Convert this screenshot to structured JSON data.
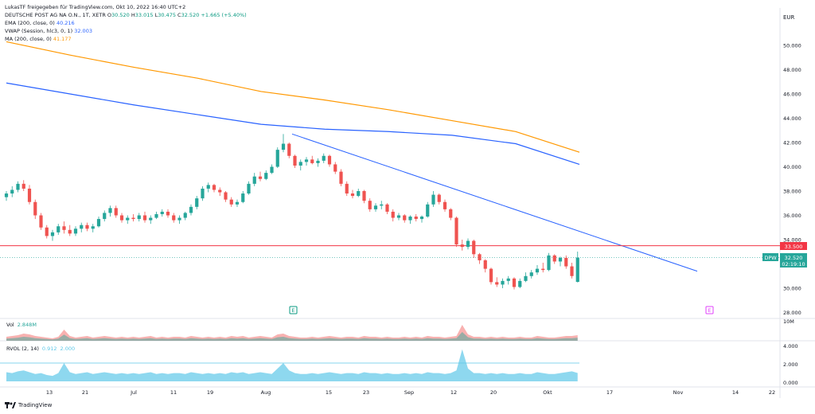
{
  "header": {
    "shared_by": "LukasTF freigegeben für TradingView.com, Okt 10, 2022 16:40 UTC+2",
    "symbol": "DEUTSCHE POST AG NA O.N., 1T, XETR",
    "o_label": "O",
    "o": "30.520",
    "h_label": "H",
    "h": "33.015",
    "l_label": "L",
    "l": "30.475",
    "c_label": "C",
    "c": "32.520",
    "chg": "+1.665 (+5.40%)"
  },
  "indicators": [
    {
      "label": "EMA (200, close, 0)",
      "value": "40.216",
      "color": "#2962ff"
    },
    {
      "label": "VWAP (Session, hlc3, 0, 1)",
      "value": "32.003",
      "color": "#26a69a"
    },
    {
      "label": "MA (200, close, 0)",
      "value": "41.177",
      "color": "#ff9800"
    }
  ],
  "price_axis": {
    "currency": "EUR",
    "labels": [
      "50.000",
      "48.000",
      "46.000",
      "44.000",
      "42.000",
      "40.000",
      "38.000",
      "36.000",
      "34.000",
      "32.000",
      "30.000",
      "28.000"
    ],
    "hline_label": "33.500",
    "last_symbol": "DPW",
    "last_price": "32.520",
    "countdown": "02:19:10"
  },
  "volume_pane": {
    "label": "Vol",
    "value": "2.848M",
    "axis_label": "10M"
  },
  "rvol_pane": {
    "label": "RVOL (2, 14)",
    "value1": "0.912",
    "value2": "2.000",
    "axis_labels": [
      "4.000",
      "2.000",
      "0.000"
    ]
  },
  "time_axis": [
    "13",
    "21",
    "Jul",
    "11",
    "19",
    "Aug",
    "15",
    "23",
    "Sep",
    "12",
    "20",
    "Okt",
    "17",
    "Nov",
    "14",
    "22"
  ],
  "markers": {
    "earnings": "E",
    "event": "E"
  },
  "footer": {
    "brand": "TradingView"
  },
  "colors": {
    "up": "#26a69a",
    "down": "#ef5350",
    "ema": "#2962ff",
    "ma": "#ff9800",
    "trend": "#2962ff",
    "hline": "#f23645",
    "rvol": "#5ec8e8"
  },
  "chart_data": [
    {
      "type": "candlestick",
      "title": "DEUTSCHE POST AG NA O.N., 1T, XETR",
      "ylabel": "EUR",
      "ylim": [
        27.5,
        51.5
      ],
      "series": [
        {
          "name": "EMA (200, close, 0)",
          "x": [
            "Jun 06",
            "Jun 20",
            "Jul 04",
            "Jul 18",
            "Aug 01",
            "Aug 15",
            "Aug 29",
            "Sep 12",
            "Sep 26",
            "Oct 10"
          ],
          "y": [
            46.9,
            46.0,
            45.1,
            44.3,
            43.5,
            43.1,
            42.9,
            42.6,
            41.9,
            40.2
          ]
        },
        {
          "name": "MA (200, close, 0)",
          "x": [
            "Jun 06",
            "Jun 20",
            "Jul 04",
            "Jul 18",
            "Aug 01",
            "Aug 15",
            "Aug 29",
            "Sep 12",
            "Sep 26",
            "Oct 10"
          ],
          "y": [
            50.3,
            49.2,
            48.2,
            47.3,
            46.2,
            45.5,
            44.7,
            43.8,
            42.9,
            41.2
          ]
        }
      ],
      "candles": [
        {
          "o": 37.5,
          "h": 38.0,
          "l": 37.2,
          "c": 37.8
        },
        {
          "o": 37.8,
          "h": 38.4,
          "l": 37.5,
          "c": 38.1
        },
        {
          "o": 38.1,
          "h": 38.8,
          "l": 37.9,
          "c": 38.6
        },
        {
          "o": 38.6,
          "h": 38.9,
          "l": 38.0,
          "c": 38.2
        },
        {
          "o": 38.2,
          "h": 38.5,
          "l": 36.9,
          "c": 37.1
        },
        {
          "o": 37.1,
          "h": 37.3,
          "l": 35.7,
          "c": 36.0
        },
        {
          "o": 36.0,
          "h": 36.2,
          "l": 34.8,
          "c": 35.0
        },
        {
          "o": 35.0,
          "h": 35.2,
          "l": 34.1,
          "c": 34.3
        },
        {
          "o": 34.3,
          "h": 34.8,
          "l": 33.9,
          "c": 34.6
        },
        {
          "o": 34.6,
          "h": 35.3,
          "l": 34.4,
          "c": 35.1
        },
        {
          "o": 35.1,
          "h": 35.5,
          "l": 34.5,
          "c": 34.8
        },
        {
          "o": 34.8,
          "h": 35.2,
          "l": 34.3,
          "c": 34.5
        },
        {
          "o": 34.5,
          "h": 35.1,
          "l": 34.3,
          "c": 34.9
        },
        {
          "o": 34.9,
          "h": 35.4,
          "l": 34.6,
          "c": 35.2
        },
        {
          "o": 35.2,
          "h": 35.4,
          "l": 34.7,
          "c": 34.9
        },
        {
          "o": 34.9,
          "h": 35.3,
          "l": 34.6,
          "c": 35.1
        },
        {
          "o": 35.1,
          "h": 35.9,
          "l": 35.0,
          "c": 35.7
        },
        {
          "o": 35.7,
          "h": 36.4,
          "l": 35.5,
          "c": 36.2
        },
        {
          "o": 36.2,
          "h": 36.8,
          "l": 35.9,
          "c": 36.6
        },
        {
          "o": 36.6,
          "h": 36.8,
          "l": 35.8,
          "c": 36.0
        },
        {
          "o": 36.0,
          "h": 36.2,
          "l": 35.4,
          "c": 35.6
        },
        {
          "o": 35.6,
          "h": 36.0,
          "l": 35.3,
          "c": 35.8
        },
        {
          "o": 35.8,
          "h": 36.1,
          "l": 35.5,
          "c": 35.7
        },
        {
          "o": 35.7,
          "h": 36.2,
          "l": 35.5,
          "c": 36.0
        },
        {
          "o": 36.0,
          "h": 36.3,
          "l": 35.4,
          "c": 35.6
        },
        {
          "o": 35.6,
          "h": 36.0,
          "l": 35.3,
          "c": 35.8
        },
        {
          "o": 35.8,
          "h": 36.3,
          "l": 35.7,
          "c": 36.1
        },
        {
          "o": 36.1,
          "h": 36.5,
          "l": 35.9,
          "c": 36.3
        },
        {
          "o": 36.3,
          "h": 36.5,
          "l": 35.8,
          "c": 36.0
        },
        {
          "o": 36.0,
          "h": 36.2,
          "l": 35.4,
          "c": 35.6
        },
        {
          "o": 35.6,
          "h": 36.0,
          "l": 35.3,
          "c": 35.8
        },
        {
          "o": 35.8,
          "h": 36.3,
          "l": 35.6,
          "c": 36.2
        },
        {
          "o": 36.2,
          "h": 36.9,
          "l": 36.0,
          "c": 36.7
        },
        {
          "o": 36.7,
          "h": 37.6,
          "l": 36.5,
          "c": 37.4
        },
        {
          "o": 37.4,
          "h": 38.4,
          "l": 37.2,
          "c": 38.2
        },
        {
          "o": 38.2,
          "h": 38.7,
          "l": 37.9,
          "c": 38.5
        },
        {
          "o": 38.5,
          "h": 38.6,
          "l": 37.9,
          "c": 38.1
        },
        {
          "o": 38.1,
          "h": 38.3,
          "l": 37.6,
          "c": 37.9
        },
        {
          "o": 37.9,
          "h": 38.0,
          "l": 37.1,
          "c": 37.3
        },
        {
          "o": 37.3,
          "h": 37.5,
          "l": 36.7,
          "c": 36.9
        },
        {
          "o": 36.9,
          "h": 37.3,
          "l": 36.7,
          "c": 37.1
        },
        {
          "o": 37.1,
          "h": 38.0,
          "l": 37.0,
          "c": 37.8
        },
        {
          "o": 37.8,
          "h": 38.8,
          "l": 37.7,
          "c": 38.6
        },
        {
          "o": 38.6,
          "h": 39.5,
          "l": 38.4,
          "c": 39.2
        },
        {
          "o": 39.2,
          "h": 39.6,
          "l": 38.8,
          "c": 39.0
        },
        {
          "o": 39.0,
          "h": 39.7,
          "l": 38.9,
          "c": 39.5
        },
        {
          "o": 39.5,
          "h": 40.2,
          "l": 39.4,
          "c": 40.0
        },
        {
          "o": 40.0,
          "h": 41.6,
          "l": 39.9,
          "c": 41.4
        },
        {
          "o": 41.4,
          "h": 42.7,
          "l": 41.2,
          "c": 41.9
        },
        {
          "o": 41.9,
          "h": 42.0,
          "l": 40.7,
          "c": 40.9
        },
        {
          "o": 40.9,
          "h": 41.0,
          "l": 39.9,
          "c": 40.1
        },
        {
          "o": 40.1,
          "h": 40.6,
          "l": 39.7,
          "c": 40.4
        },
        {
          "o": 40.4,
          "h": 40.8,
          "l": 40.1,
          "c": 40.6
        },
        {
          "o": 40.6,
          "h": 40.9,
          "l": 40.2,
          "c": 40.3
        },
        {
          "o": 40.3,
          "h": 40.7,
          "l": 40.0,
          "c": 40.5
        },
        {
          "o": 40.5,
          "h": 41.1,
          "l": 40.3,
          "c": 40.9
        },
        {
          "o": 40.9,
          "h": 41.0,
          "l": 40.0,
          "c": 40.2
        },
        {
          "o": 40.2,
          "h": 40.4,
          "l": 39.4,
          "c": 39.6
        },
        {
          "o": 39.6,
          "h": 39.8,
          "l": 38.4,
          "c": 38.6
        },
        {
          "o": 38.6,
          "h": 38.8,
          "l": 37.6,
          "c": 37.8
        },
        {
          "o": 37.8,
          "h": 38.1,
          "l": 37.4,
          "c": 37.6
        },
        {
          "o": 37.6,
          "h": 38.2,
          "l": 37.5,
          "c": 38.0
        },
        {
          "o": 38.0,
          "h": 38.1,
          "l": 37.0,
          "c": 37.2
        },
        {
          "o": 37.2,
          "h": 37.4,
          "l": 36.3,
          "c": 36.5
        },
        {
          "o": 36.5,
          "h": 37.0,
          "l": 36.3,
          "c": 36.8
        },
        {
          "o": 36.8,
          "h": 37.2,
          "l": 36.5,
          "c": 36.9
        },
        {
          "o": 36.9,
          "h": 37.0,
          "l": 36.1,
          "c": 36.3
        },
        {
          "o": 36.3,
          "h": 36.5,
          "l": 35.5,
          "c": 35.8
        },
        {
          "o": 35.8,
          "h": 36.2,
          "l": 35.6,
          "c": 36.0
        },
        {
          "o": 36.0,
          "h": 36.1,
          "l": 35.4,
          "c": 35.6
        },
        {
          "o": 35.6,
          "h": 36.0,
          "l": 35.3,
          "c": 35.9
        },
        {
          "o": 35.9,
          "h": 36.1,
          "l": 35.5,
          "c": 35.7
        },
        {
          "o": 35.7,
          "h": 36.0,
          "l": 35.4,
          "c": 35.9
        },
        {
          "o": 35.9,
          "h": 37.1,
          "l": 35.8,
          "c": 36.9
        },
        {
          "o": 36.9,
          "h": 38.0,
          "l": 36.7,
          "c": 37.7
        },
        {
          "o": 37.7,
          "h": 37.8,
          "l": 36.9,
          "c": 37.1
        },
        {
          "o": 37.1,
          "h": 37.3,
          "l": 36.3,
          "c": 36.5
        },
        {
          "o": 36.5,
          "h": 36.6,
          "l": 35.6,
          "c": 35.8
        },
        {
          "o": 35.8,
          "h": 35.9,
          "l": 33.4,
          "c": 33.6
        },
        {
          "o": 33.6,
          "h": 34.0,
          "l": 33.1,
          "c": 33.4
        },
        {
          "o": 33.4,
          "h": 34.1,
          "l": 33.2,
          "c": 33.9
        },
        {
          "o": 33.9,
          "h": 34.0,
          "l": 32.5,
          "c": 32.8
        },
        {
          "o": 32.8,
          "h": 32.9,
          "l": 32.0,
          "c": 32.3
        },
        {
          "o": 32.3,
          "h": 32.4,
          "l": 31.3,
          "c": 31.6
        },
        {
          "o": 31.6,
          "h": 31.7,
          "l": 30.3,
          "c": 30.5
        },
        {
          "o": 30.5,
          "h": 30.9,
          "l": 30.1,
          "c": 30.3
        },
        {
          "o": 30.3,
          "h": 30.8,
          "l": 30.0,
          "c": 30.6
        },
        {
          "o": 30.6,
          "h": 31.0,
          "l": 30.3,
          "c": 30.8
        },
        {
          "o": 30.8,
          "h": 30.9,
          "l": 29.9,
          "c": 30.1
        },
        {
          "o": 30.1,
          "h": 30.8,
          "l": 30.0,
          "c": 30.6
        },
        {
          "o": 30.6,
          "h": 31.3,
          "l": 30.5,
          "c": 31.0
        },
        {
          "o": 31.0,
          "h": 31.5,
          "l": 30.8,
          "c": 31.3
        },
        {
          "o": 31.3,
          "h": 31.9,
          "l": 31.1,
          "c": 31.6
        },
        {
          "o": 31.6,
          "h": 32.1,
          "l": 31.3,
          "c": 31.5
        },
        {
          "o": 31.5,
          "h": 32.9,
          "l": 31.4,
          "c": 32.7
        },
        {
          "o": 32.7,
          "h": 32.8,
          "l": 32.0,
          "c": 32.2
        },
        {
          "o": 32.2,
          "h": 32.6,
          "l": 31.8,
          "c": 32.5
        },
        {
          "o": 32.5,
          "h": 32.7,
          "l": 31.6,
          "c": 31.8
        },
        {
          "o": 31.8,
          "h": 32.1,
          "l": 30.8,
          "c": 31.0
        },
        {
          "o": 30.52,
          "h": 33.015,
          "l": 30.475,
          "c": 32.52
        }
      ],
      "horizontal_line": 33.5
    }
  ]
}
